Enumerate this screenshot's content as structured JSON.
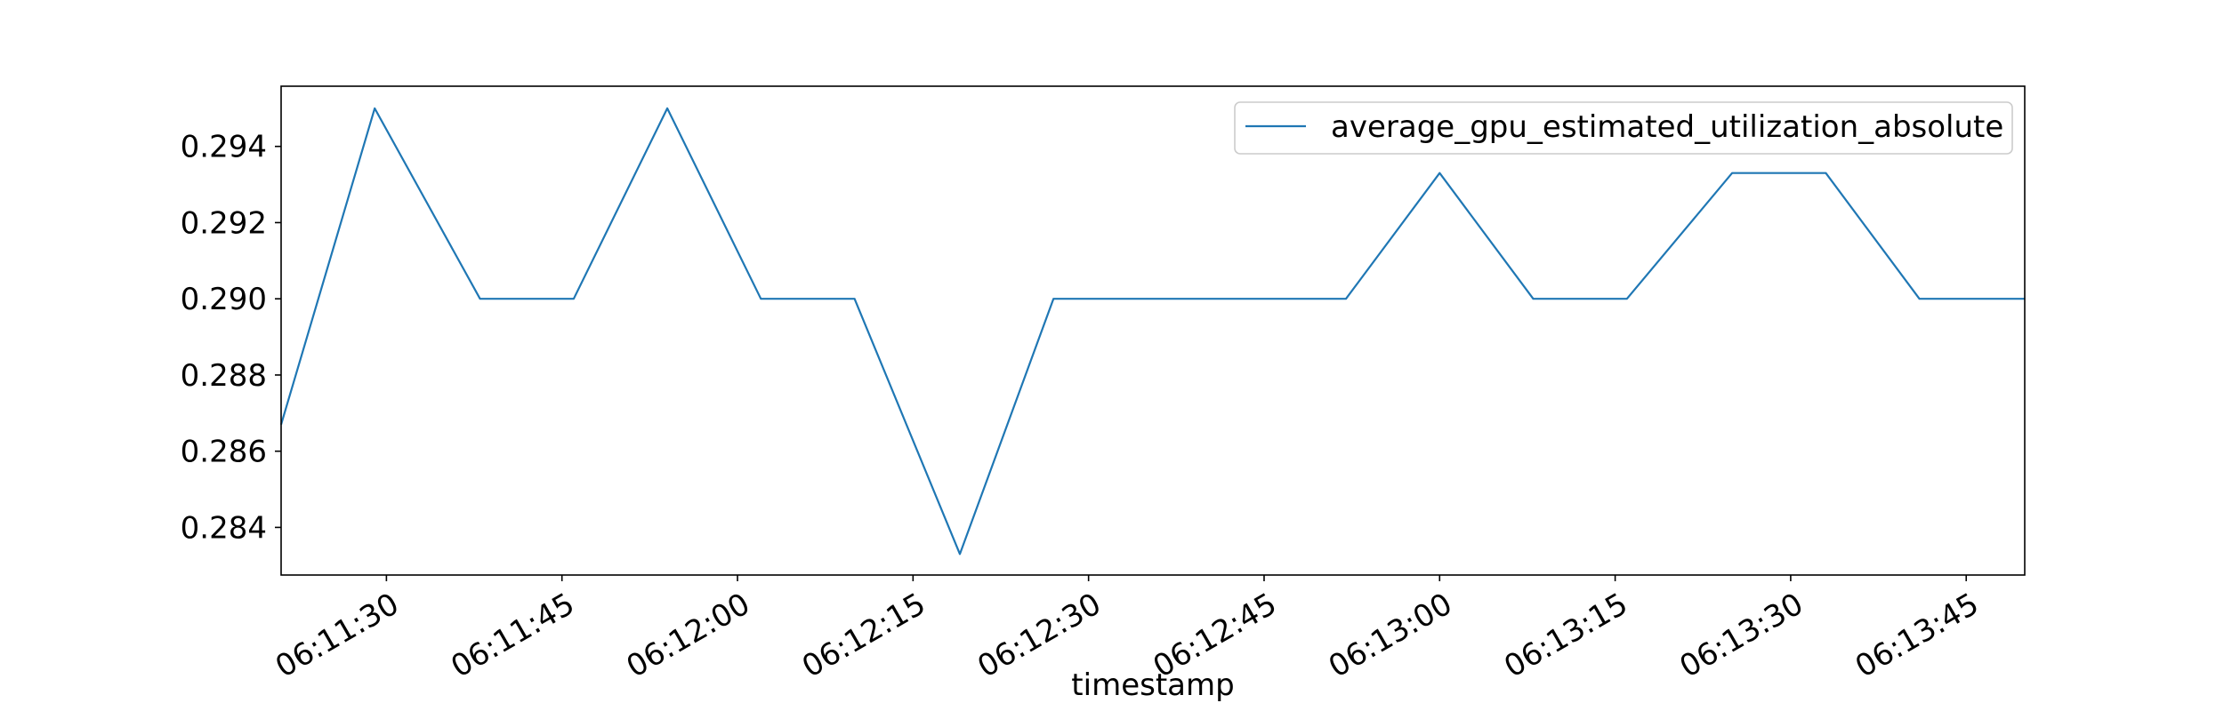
{
  "chart_data": {
    "type": "line",
    "xlabel": "timestamp",
    "ylabel": "",
    "x_ticks": [
      "06:11:30",
      "06:11:45",
      "06:12:00",
      "06:12:15",
      "06:12:30",
      "06:12:45",
      "06:13:00",
      "06:13:15",
      "06:13:30",
      "06:13:45"
    ],
    "y_ticks": [
      "0.284",
      "0.286",
      "0.288",
      "0.290",
      "0.292",
      "0.294"
    ],
    "xlim": [
      "06:11:21",
      "06:13:50"
    ],
    "ylim": [
      0.28275,
      0.29558
    ],
    "grid": false,
    "legend_position": "upper right",
    "series": [
      {
        "name": "average_gpu_estimated_utilization_absolute",
        "color": "#1f77b4",
        "x": [
          "06:11:21",
          "06:11:29",
          "06:11:38",
          "06:11:46",
          "06:11:54",
          "06:12:02",
          "06:12:10",
          "06:12:19",
          "06:12:27",
          "06:12:35",
          "06:12:43",
          "06:12:52",
          "06:13:00",
          "06:13:08",
          "06:13:16",
          "06:13:25",
          "06:13:33",
          "06:13:41",
          "06:13:50"
        ],
        "values": [
          0.2867,
          0.295,
          0.29,
          0.29,
          0.295,
          0.29,
          0.29,
          0.2833,
          0.29,
          0.29,
          0.29,
          0.29,
          0.2933,
          0.29,
          0.29,
          0.2933,
          0.2933,
          0.29,
          0.29
        ]
      }
    ]
  }
}
